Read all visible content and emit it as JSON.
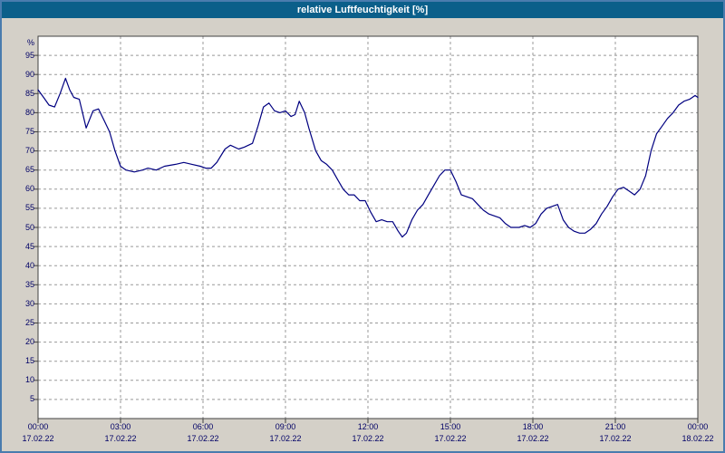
{
  "window": {
    "title": "relative Luftfeuchtigkeit [%]"
  },
  "colors": {
    "frame_border": "#4a7cae",
    "titlebar_bg": "#0b5f8a",
    "titlebar_text": "#ffffff",
    "background": "#d4d0c8",
    "plot_bg": "#ffffff",
    "grid": "#999999",
    "axis": "#404040",
    "line": "#000080",
    "label": "#000066"
  },
  "chart_data": {
    "type": "line",
    "title": "relative Luftfeuchtigkeit [%]",
    "ylabel": "%",
    "ylim": [
      0,
      100
    ],
    "xlim_hours": [
      0,
      24
    ],
    "grid": "dashed",
    "legend": "none",
    "y_ticks": [
      5,
      10,
      15,
      20,
      25,
      30,
      35,
      40,
      45,
      50,
      55,
      60,
      65,
      70,
      75,
      80,
      85,
      90,
      95
    ],
    "x_ticks": [
      {
        "hour": 0,
        "time": "00:00",
        "date": "17.02.22"
      },
      {
        "hour": 3,
        "time": "03:00",
        "date": "17.02.22"
      },
      {
        "hour": 6,
        "time": "06:00",
        "date": "17.02.22"
      },
      {
        "hour": 9,
        "time": "09:00",
        "date": "17.02.22"
      },
      {
        "hour": 12,
        "time": "12:00",
        "date": "17.02.22"
      },
      {
        "hour": 15,
        "time": "15:00",
        "date": "17.02.22"
      },
      {
        "hour": 18,
        "time": "18:00",
        "date": "17.02.22"
      },
      {
        "hour": 21,
        "time": "21:00",
        "date": "17.02.22"
      },
      {
        "hour": 24,
        "time": "00:00",
        "date": "18.02.22"
      }
    ],
    "series": [
      {
        "name": "relative Luftfeuchtigkeit",
        "unit": "%",
        "x": [
          0,
          0.2,
          0.4,
          0.6,
          0.8,
          1.0,
          1.15,
          1.3,
          1.5,
          1.75,
          2.0,
          2.2,
          2.4,
          2.6,
          2.8,
          3.0,
          3.2,
          3.5,
          3.8,
          4.0,
          4.3,
          4.6,
          5.0,
          5.3,
          5.6,
          5.9,
          6.1,
          6.3,
          6.5,
          6.8,
          7.0,
          7.3,
          7.5,
          7.8,
          8.0,
          8.2,
          8.4,
          8.6,
          8.8,
          9.0,
          9.2,
          9.35,
          9.5,
          9.7,
          9.85,
          10.1,
          10.3,
          10.5,
          10.7,
          10.9,
          11.1,
          11.3,
          11.5,
          11.7,
          11.9,
          12.1,
          12.3,
          12.5,
          12.7,
          12.9,
          13.1,
          13.25,
          13.4,
          13.6,
          13.8,
          14.0,
          14.2,
          14.4,
          14.6,
          14.8,
          15.0,
          15.2,
          15.4,
          15.6,
          15.8,
          16.0,
          16.2,
          16.4,
          16.6,
          16.8,
          17.0,
          17.2,
          17.5,
          17.7,
          17.9,
          18.1,
          18.3,
          18.5,
          18.7,
          18.9,
          19.1,
          19.3,
          19.5,
          19.7,
          19.9,
          20.1,
          20.3,
          20.5,
          20.7,
          20.9,
          21.1,
          21.3,
          21.5,
          21.7,
          21.9,
          22.1,
          22.3,
          22.5,
          22.7,
          22.9,
          23.1,
          23.3,
          23.5,
          23.7,
          23.9,
          24.0
        ],
        "y": [
          86,
          84,
          82,
          81.5,
          85,
          89,
          86,
          84,
          83.5,
          76,
          80.5,
          81,
          78,
          75,
          70,
          66,
          65,
          64.5,
          65,
          65.5,
          65,
          66,
          66.5,
          67,
          66.5,
          66,
          65.5,
          65.5,
          67,
          70.5,
          71.5,
          70.5,
          71,
          72,
          76.5,
          81.5,
          82.5,
          80.5,
          80,
          80.5,
          79,
          79.5,
          83,
          80,
          76,
          70,
          67.5,
          66.5,
          65,
          62.5,
          60,
          58.5,
          58.5,
          57,
          57,
          54,
          51.5,
          52,
          51.5,
          51.5,
          49,
          47.5,
          48.5,
          52,
          54.5,
          56,
          58.5,
          61,
          63.5,
          65,
          65,
          62,
          58.5,
          58,
          57.5,
          56,
          54.5,
          53.5,
          53,
          52.5,
          51,
          50,
          50,
          50.5,
          50,
          51,
          53.5,
          55,
          55.5,
          56,
          52,
          50,
          49,
          48.5,
          48.5,
          49.5,
          51,
          53.5,
          55.5,
          58,
          60,
          60.5,
          59.5,
          58.5,
          60,
          63.5,
          70,
          74.5,
          76.5,
          78.5,
          80,
          82,
          83,
          83.5,
          84.5,
          84
        ]
      }
    ]
  }
}
